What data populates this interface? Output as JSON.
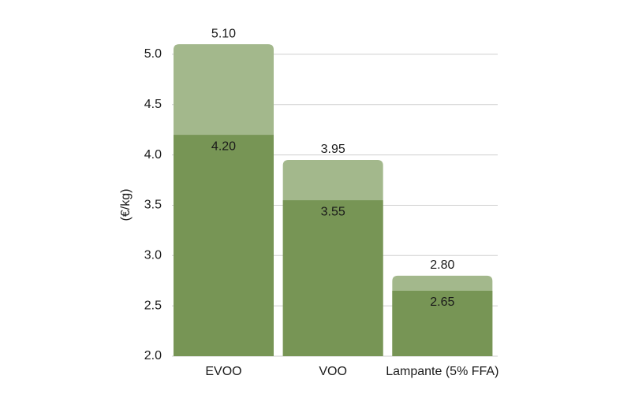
{
  "chart_data": {
    "type": "bar",
    "y_label": "(€/kg)",
    "categories": [
      "EVOO",
      "VOO",
      "Lampante (5% FFA)"
    ],
    "series": [
      {
        "color": "#a3b88c",
        "values": [
          5.1,
          3.95,
          2.8
        ],
        "value_labels": [
          "5.10",
          "3.95",
          "2.80"
        ]
      },
      {
        "color": "#779555",
        "values": [
          4.2,
          3.55,
          2.65
        ],
        "value_labels": [
          "4.20",
          "3.55",
          "2.65"
        ]
      }
    ],
    "ylim": [
      2,
      5.25
    ],
    "yticks": [
      {
        "value": 2,
        "label": "2.0"
      },
      2.5,
      {
        "value": 3,
        "label": "3.0"
      },
      3.5,
      {
        "value": 4,
        "label": "4.0"
      },
      4.5,
      {
        "value": 5,
        "label": "5.0"
      }
    ],
    "grid": true
  }
}
